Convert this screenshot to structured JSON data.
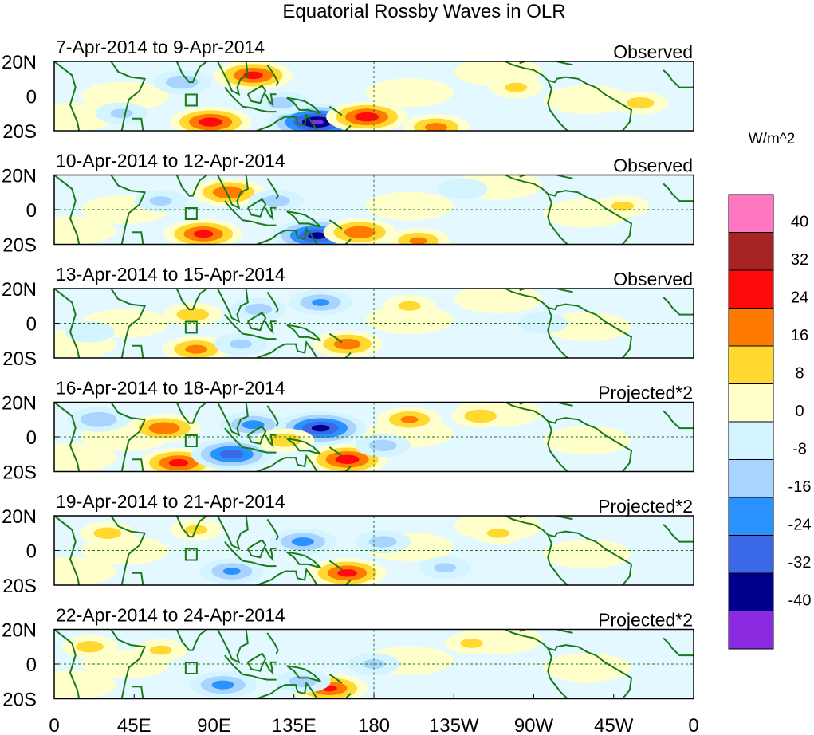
{
  "chart_data": {
    "type": "heatmap",
    "title": "Equatorial Rossby Waves in OLR",
    "xlabel": "",
    "ylabel": "",
    "xlim": [
      0,
      360
    ],
    "ylim": [
      -20,
      20
    ],
    "x_ticks": [
      "0",
      "45E",
      "90E",
      "135E",
      "180",
      "135W",
      "90W",
      "45W",
      "0"
    ],
    "y_ticks": [
      "20N",
      "0",
      "20S"
    ],
    "colorbar": {
      "units": "W/m^2",
      "levels": [
        "40",
        "32",
        "24",
        "16",
        "8",
        "0",
        "-8",
        "-16",
        "-24",
        "-32",
        "-40"
      ],
      "colors": [
        "#ff77c0",
        "#a82323",
        "#ff0a0a",
        "#ff7a00",
        "#ffd830",
        "#ffffcc",
        "#d4f4ff",
        "#a8d4ff",
        "#2a92ff",
        "#3b68e6",
        "#00008c",
        "#8a2be2"
      ]
    },
    "panels": [
      {
        "dates": "7-Apr-2014 to 9-Apr-2014",
        "status": "Observed",
        "blobs": [
          {
            "lon": 148,
            "lat": -15,
            "val": -42
          },
          {
            "lon": 88,
            "lat": -15,
            "val": 30
          },
          {
            "lon": 112,
            "lat": 12,
            "val": 28
          },
          {
            "lon": 176,
            "lat": -12,
            "val": 30
          },
          {
            "lon": 215,
            "lat": -18,
            "val": 20
          },
          {
            "lon": 72,
            "lat": 8,
            "val": -14
          },
          {
            "lon": 128,
            "lat": -4,
            "val": -12
          },
          {
            "lon": 330,
            "lat": -4,
            "val": 12
          },
          {
            "lon": 38,
            "lat": -10,
            "val": -10
          },
          {
            "lon": 260,
            "lat": 5,
            "val": 10
          }
        ]
      },
      {
        "dates": "10-Apr-2014 to 12-Apr-2014",
        "status": "Observed",
        "blobs": [
          {
            "lon": 148,
            "lat": -15,
            "val": -36
          },
          {
            "lon": 84,
            "lat": -14,
            "val": 28
          },
          {
            "lon": 98,
            "lat": 10,
            "val": 24
          },
          {
            "lon": 172,
            "lat": -13,
            "val": 24
          },
          {
            "lon": 205,
            "lat": -18,
            "val": 18
          },
          {
            "lon": 125,
            "lat": 5,
            "val": -12
          },
          {
            "lon": 60,
            "lat": 5,
            "val": -10
          },
          {
            "lon": 320,
            "lat": 2,
            "val": 10
          },
          {
            "lon": 230,
            "lat": 12,
            "val": -8
          }
        ]
      },
      {
        "dates": "13-Apr-2014 to 15-Apr-2014",
        "status": "Observed",
        "blobs": [
          {
            "lon": 80,
            "lat": -15,
            "val": 20
          },
          {
            "lon": 78,
            "lat": 5,
            "val": 14
          },
          {
            "lon": 165,
            "lat": -12,
            "val": 22
          },
          {
            "lon": 150,
            "lat": 12,
            "val": -18
          },
          {
            "lon": 115,
            "lat": 8,
            "val": -12
          },
          {
            "lon": 105,
            "lat": -12,
            "val": -10
          },
          {
            "lon": 200,
            "lat": 10,
            "val": 10
          },
          {
            "lon": 275,
            "lat": 0,
            "val": -8
          },
          {
            "lon": 20,
            "lat": -5,
            "val": -8
          }
        ]
      },
      {
        "dates": "16-Apr-2014 to 18-Apr-2014",
        "status": "Projected*2",
        "blobs": [
          {
            "lon": 150,
            "lat": 5,
            "val": -36
          },
          {
            "lon": 70,
            "lat": -15,
            "val": 28
          },
          {
            "lon": 165,
            "lat": -13,
            "val": 30
          },
          {
            "lon": 62,
            "lat": 5,
            "val": 24
          },
          {
            "lon": 100,
            "lat": -10,
            "val": -30
          },
          {
            "lon": 112,
            "lat": 7,
            "val": -20
          },
          {
            "lon": 200,
            "lat": 10,
            "val": 18
          },
          {
            "lon": 25,
            "lat": 10,
            "val": -16
          },
          {
            "lon": 185,
            "lat": -5,
            "val": -12
          },
          {
            "lon": 240,
            "lat": 12,
            "val": 14
          },
          {
            "lon": 130,
            "lat": -2,
            "val": 14
          }
        ]
      },
      {
        "dates": "19-Apr-2014 to 21-Apr-2014",
        "status": "Projected*2",
        "blobs": [
          {
            "lon": 165,
            "lat": -13,
            "val": 28
          },
          {
            "lon": 140,
            "lat": 5,
            "val": -20
          },
          {
            "lon": 100,
            "lat": -12,
            "val": -18
          },
          {
            "lon": 185,
            "lat": 5,
            "val": -12
          },
          {
            "lon": 30,
            "lat": 10,
            "val": 12
          },
          {
            "lon": 80,
            "lat": 12,
            "val": 10
          },
          {
            "lon": 250,
            "lat": 10,
            "val": 10
          },
          {
            "lon": 220,
            "lat": -10,
            "val": -10
          }
        ]
      },
      {
        "dates": "22-Apr-2014 to 24-Apr-2014",
        "status": "Projected*2",
        "blobs": [
          {
            "lon": 155,
            "lat": -14,
            "val": 26
          },
          {
            "lon": 20,
            "lat": 10,
            "val": 12
          },
          {
            "lon": 95,
            "lat": -12,
            "val": -20
          },
          {
            "lon": 140,
            "lat": -10,
            "val": -12
          },
          {
            "lon": 180,
            "lat": 0,
            "val": -10
          },
          {
            "lon": 235,
            "lat": 12,
            "val": 10
          },
          {
            "lon": 60,
            "lat": 8,
            "val": 10
          },
          {
            "lon": 300,
            "lat": -5,
            "val": 8
          }
        ]
      }
    ]
  }
}
